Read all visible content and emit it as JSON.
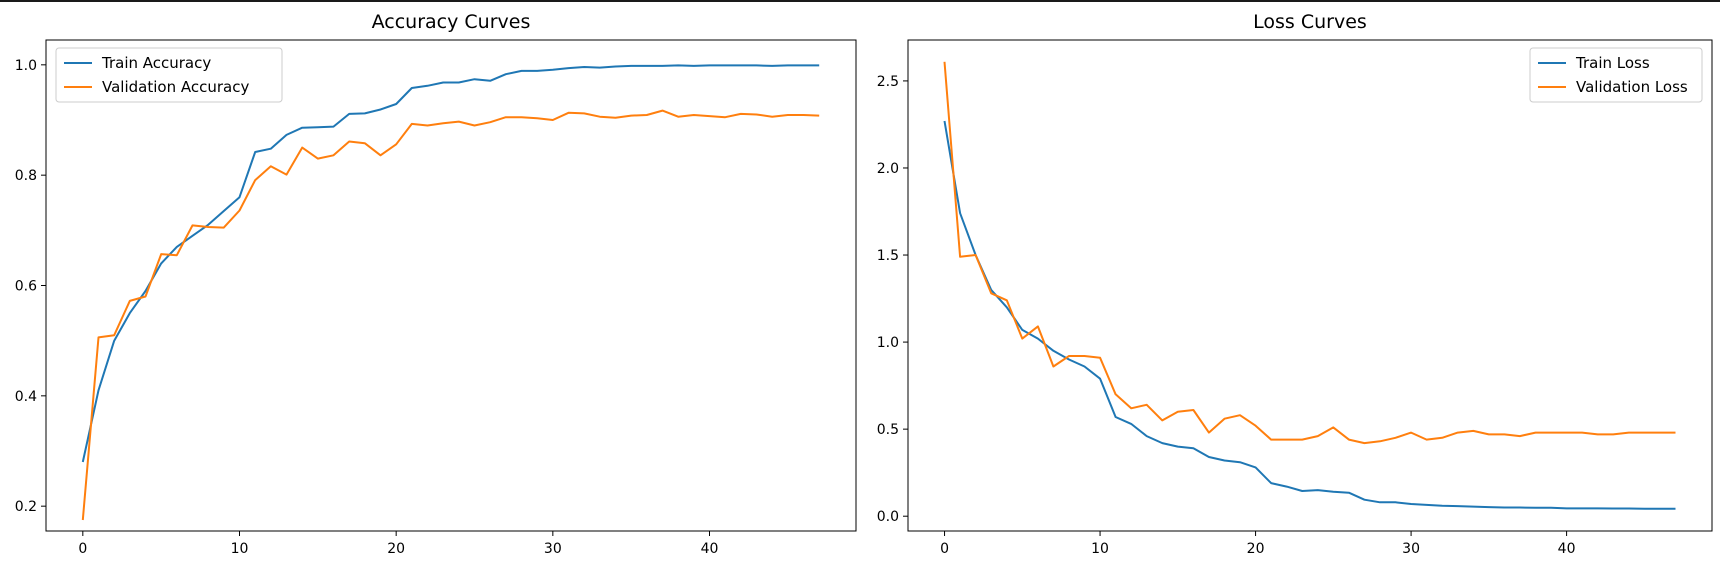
{
  "chart_data": [
    {
      "type": "line",
      "title": "Accuracy Curves",
      "xlabel": "",
      "ylabel": "",
      "xlim": [
        -2.35,
        49.35
      ],
      "ylim": [
        0.155,
        1.045
      ],
      "xticks": [
        0,
        10,
        20,
        30,
        40
      ],
      "yticks": [
        0.2,
        0.4,
        0.6,
        0.8,
        1.0
      ],
      "ytick_labels": [
        "0.2",
        "0.4",
        "0.6",
        "0.8",
        "1.0"
      ],
      "grid": false,
      "legend": "upper-left",
      "x": [
        0,
        1,
        2,
        3,
        4,
        5,
        6,
        7,
        8,
        9,
        10,
        11,
        12,
        13,
        14,
        15,
        16,
        17,
        18,
        19,
        20,
        21,
        22,
        23,
        24,
        25,
        26,
        27,
        28,
        29,
        30,
        31,
        32,
        33,
        34,
        35,
        36,
        37,
        38,
        39,
        40,
        41,
        42,
        43,
        44,
        45,
        46,
        47
      ],
      "series": [
        {
          "name": "Train Accuracy",
          "color": "#1f77b4",
          "values": [
            0.28,
            0.41,
            0.5,
            0.55,
            0.59,
            0.64,
            0.67,
            0.69,
            0.71,
            0.735,
            0.76,
            0.842,
            0.848,
            0.873,
            0.886,
            0.887,
            0.888,
            0.911,
            0.912,
            0.919,
            0.929,
            0.958,
            0.962,
            0.968,
            0.968,
            0.974,
            0.971,
            0.983,
            0.989,
            0.989,
            0.991,
            0.994,
            0.996,
            0.995,
            0.997,
            0.998,
            0.998,
            0.998,
            0.999,
            0.998,
            0.999,
            0.999,
            0.999,
            0.999,
            0.998,
            0.999,
            0.999,
            0.999
          ]
        },
        {
          "name": "Validation Accuracy",
          "color": "#ff7f0e",
          "values": [
            0.175,
            0.506,
            0.51,
            0.572,
            0.58,
            0.657,
            0.655,
            0.709,
            0.706,
            0.705,
            0.736,
            0.791,
            0.816,
            0.801,
            0.85,
            0.83,
            0.836,
            0.861,
            0.858,
            0.836,
            0.856,
            0.893,
            0.89,
            0.894,
            0.897,
            0.89,
            0.896,
            0.905,
            0.905,
            0.903,
            0.9,
            0.913,
            0.912,
            0.906,
            0.904,
            0.908,
            0.909,
            0.917,
            0.906,
            0.909,
            0.907,
            0.905,
            0.911,
            0.91,
            0.906,
            0.909,
            0.909,
            0.908
          ]
        }
      ]
    },
    {
      "type": "line",
      "title": "Loss Curves",
      "xlabel": "",
      "ylabel": "",
      "xlim": [
        -2.35,
        49.35
      ],
      "ylim": [
        -0.085,
        2.735
      ],
      "xticks": [
        0,
        10,
        20,
        30,
        40
      ],
      "yticks": [
        0.0,
        0.5,
        1.0,
        1.5,
        2.0,
        2.5
      ],
      "ytick_labels": [
        "0.0",
        "0.5",
        "1.0",
        "1.5",
        "2.0",
        "2.5"
      ],
      "grid": false,
      "legend": "upper-right",
      "x": [
        0,
        1,
        2,
        3,
        4,
        5,
        6,
        7,
        8,
        9,
        10,
        11,
        12,
        13,
        14,
        15,
        16,
        17,
        18,
        19,
        20,
        21,
        22,
        23,
        24,
        25,
        26,
        27,
        28,
        29,
        30,
        31,
        32,
        33,
        34,
        35,
        36,
        37,
        38,
        39,
        40,
        41,
        42,
        43,
        44,
        45,
        46,
        47
      ],
      "series": [
        {
          "name": "Train Loss",
          "color": "#1f77b4",
          "values": [
            2.27,
            1.74,
            1.5,
            1.3,
            1.2,
            1.07,
            1.02,
            0.95,
            0.9,
            0.86,
            0.79,
            0.57,
            0.53,
            0.46,
            0.42,
            0.4,
            0.39,
            0.34,
            0.32,
            0.31,
            0.28,
            0.19,
            0.17,
            0.145,
            0.15,
            0.14,
            0.135,
            0.095,
            0.08,
            0.08,
            0.07,
            0.065,
            0.06,
            0.058,
            0.055,
            0.052,
            0.05,
            0.05,
            0.048,
            0.048,
            0.045,
            0.045,
            0.045,
            0.044,
            0.044,
            0.043,
            0.043,
            0.043
          ]
        },
        {
          "name": "Validation Loss",
          "color": "#ff7f0e",
          "values": [
            2.61,
            1.49,
            1.5,
            1.28,
            1.24,
            1.02,
            1.09,
            0.86,
            0.92,
            0.92,
            0.91,
            0.7,
            0.62,
            0.64,
            0.55,
            0.6,
            0.61,
            0.48,
            0.56,
            0.58,
            0.52,
            0.44,
            0.44,
            0.44,
            0.46,
            0.51,
            0.44,
            0.42,
            0.43,
            0.45,
            0.48,
            0.44,
            0.45,
            0.48,
            0.49,
            0.47,
            0.47,
            0.46,
            0.48,
            0.48,
            0.48,
            0.48,
            0.47,
            0.47,
            0.48,
            0.48,
            0.48,
            0.48
          ]
        }
      ]
    }
  ]
}
